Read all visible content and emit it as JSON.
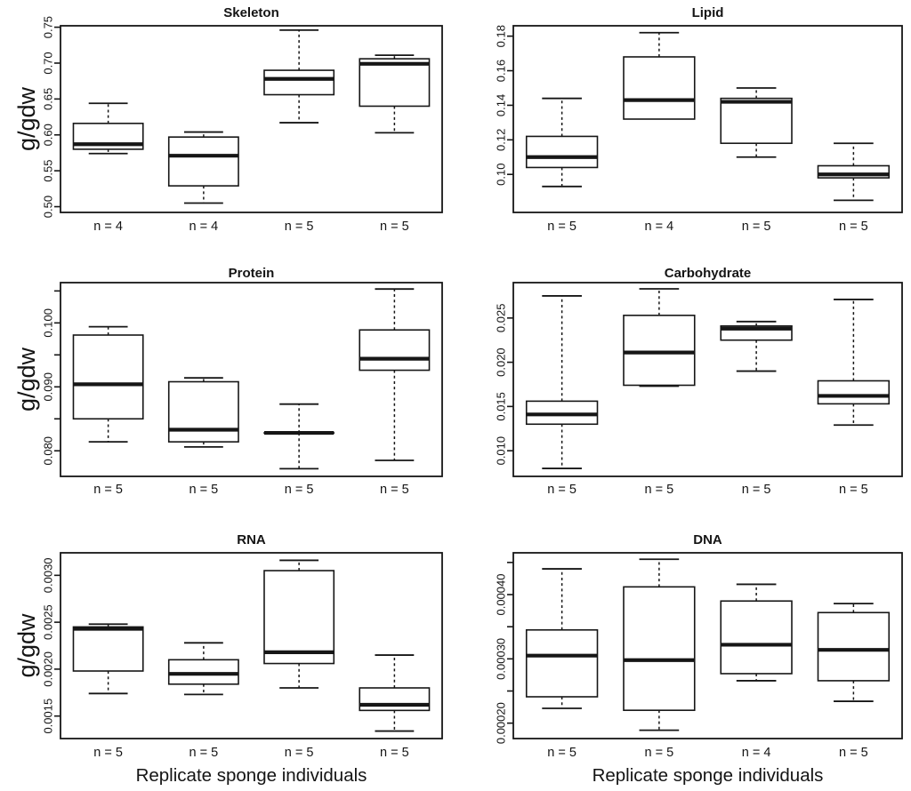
{
  "figure": {
    "y_axis_label": "g/gdw",
    "x_axis_label": "Replicate sponge individuals"
  },
  "chart_data": [
    {
      "type": "boxplot",
      "title": "Skeleton",
      "ylabel": "g/gdw",
      "categories": [
        "n = 4",
        "n = 4",
        "n = 5",
        "n = 5"
      ],
      "ylim": [
        0.492,
        0.752
      ],
      "ytick_values": [
        0.5,
        0.55,
        0.6,
        0.65,
        0.7,
        0.75
      ],
      "ytick_labels": [
        "0.50",
        "0.55",
        "0.60",
        "0.65",
        "0.70",
        "0.75"
      ],
      "yticks_minor": [],
      "boxes": [
        {
          "whisker_low": 0.574,
          "q1": 0.58,
          "median": 0.587,
          "q3": 0.616,
          "whisker_high": 0.644
        },
        {
          "whisker_low": 0.505,
          "q1": 0.529,
          "median": 0.571,
          "q3": 0.597,
          "whisker_high": 0.604
        },
        {
          "whisker_low": 0.617,
          "q1": 0.656,
          "median": 0.678,
          "q3": 0.69,
          "whisker_high": 0.746
        },
        {
          "whisker_low": 0.603,
          "q1": 0.64,
          "median": 0.699,
          "q3": 0.706,
          "whisker_high": 0.711
        }
      ]
    },
    {
      "type": "boxplot",
      "title": "Lipid",
      "categories": [
        "n = 5",
        "n = 4",
        "n = 5",
        "n = 5"
      ],
      "ylim": [
        0.078,
        0.186
      ],
      "ytick_values": [
        0.1,
        0.12,
        0.14,
        0.16,
        0.18
      ],
      "ytick_labels": [
        "0.10",
        "0.12",
        "0.14",
        "0.16",
        "0.18"
      ],
      "yticks_minor": [],
      "boxes": [
        {
          "whisker_low": 0.093,
          "q1": 0.104,
          "median": 0.11,
          "q3": 0.122,
          "whisker_high": 0.144
        },
        {
          "whisker_low": 0.132,
          "q1": 0.132,
          "median": 0.143,
          "q3": 0.168,
          "whisker_high": 0.182
        },
        {
          "whisker_low": 0.11,
          "q1": 0.118,
          "median": 0.142,
          "q3": 0.144,
          "whisker_high": 0.15
        },
        {
          "whisker_low": 0.085,
          "q1": 0.098,
          "median": 0.1,
          "q3": 0.105,
          "whisker_high": 0.118
        }
      ]
    },
    {
      "type": "boxplot",
      "title": "Protein",
      "ylabel": "g/gdw",
      "categories": [
        "n = 5",
        "n = 5",
        "n = 5",
        "n = 5"
      ],
      "ylim": [
        0.076,
        0.1063
      ],
      "ytick_values": [
        0.08,
        0.09,
        0.1
      ],
      "ytick_labels": [
        "0.080",
        "0.090",
        "0.100"
      ],
      "yticks_minor": [
        0.085,
        0.095,
        0.105
      ],
      "boxes": [
        {
          "whisker_low": 0.0814,
          "q1": 0.085,
          "median": 0.0904,
          "q3": 0.0981,
          "whisker_high": 0.0994
        },
        {
          "whisker_low": 0.0806,
          "q1": 0.0814,
          "median": 0.0833,
          "q3": 0.0908,
          "whisker_high": 0.0914
        },
        {
          "whisker_low": 0.0772,
          "q1": 0.0828,
          "median": 0.0828,
          "q3": 0.0828,
          "whisker_high": 0.0873
        },
        {
          "whisker_low": 0.0785,
          "q1": 0.0926,
          "median": 0.0944,
          "q3": 0.0989,
          "whisker_high": 0.1053
        }
      ]
    },
    {
      "type": "boxplot",
      "title": "Carbohydrate",
      "categories": [
        "n = 5",
        "n = 5",
        "n = 5",
        "n = 5"
      ],
      "ylim": [
        0.0071,
        0.029
      ],
      "ytick_values": [
        0.01,
        0.015,
        0.02,
        0.025
      ],
      "ytick_labels": [
        "0.010",
        "0.015",
        "0.020",
        "0.025"
      ],
      "yticks_minor": [],
      "boxes": [
        {
          "whisker_low": 0.008,
          "q1": 0.013,
          "median": 0.0141,
          "q3": 0.0156,
          "whisker_high": 0.0275
        },
        {
          "whisker_low": 0.0173,
          "q1": 0.0174,
          "median": 0.0211,
          "q3": 0.0253,
          "whisker_high": 0.0283
        },
        {
          "whisker_low": 0.019,
          "q1": 0.0225,
          "median": 0.0238,
          "q3": 0.0241,
          "whisker_high": 0.0246
        },
        {
          "whisker_low": 0.0129,
          "q1": 0.0153,
          "median": 0.0162,
          "q3": 0.0179,
          "whisker_high": 0.0271
        }
      ]
    },
    {
      "type": "boxplot",
      "title": "RNA",
      "ylabel": "g/gdw",
      "xlabel": "Replicate sponge individuals",
      "categories": [
        "n = 5",
        "n = 5",
        "n = 5",
        "n = 5"
      ],
      "ylim": [
        0.00126,
        0.00324
      ],
      "ytick_values": [
        0.0015,
        0.002,
        0.0025,
        0.003
      ],
      "ytick_labels": [
        "0.0015",
        "0.0020",
        "0.0025",
        "0.0030"
      ],
      "yticks_minor": [],
      "boxes": [
        {
          "whisker_low": 0.00174,
          "q1": 0.00198,
          "median": 0.00243,
          "q3": 0.00245,
          "whisker_high": 0.00248
        },
        {
          "whisker_low": 0.00173,
          "q1": 0.00184,
          "median": 0.00195,
          "q3": 0.0021,
          "whisker_high": 0.00228
        },
        {
          "whisker_low": 0.0018,
          "q1": 0.00206,
          "median": 0.00218,
          "q3": 0.00305,
          "whisker_high": 0.00316
        },
        {
          "whisker_low": 0.00134,
          "q1": 0.00156,
          "median": 0.00162,
          "q3": 0.0018,
          "whisker_high": 0.00215
        }
      ]
    },
    {
      "type": "boxplot",
      "title": "DNA",
      "xlabel": "Replicate sponge individuals",
      "categories": [
        "n = 5",
        "n = 5",
        "n = 4",
        "n = 5"
      ],
      "ylim": [
        0.000176,
        0.000465
      ],
      "ytick_values": [
        0.0002,
        0.0003,
        0.0004
      ],
      "ytick_labels": [
        "0.00020",
        "0.00030",
        "0.00040"
      ],
      "yticks_minor": [
        0.00025,
        0.00035,
        0.00045
      ],
      "boxes": [
        {
          "whisker_low": 0.000223,
          "q1": 0.000241,
          "median": 0.000305,
          "q3": 0.000345,
          "whisker_high": 0.00044
        },
        {
          "whisker_low": 0.000189,
          "q1": 0.00022,
          "median": 0.000298,
          "q3": 0.000412,
          "whisker_high": 0.000455
        },
        {
          "whisker_low": 0.000266,
          "q1": 0.000277,
          "median": 0.000322,
          "q3": 0.00039,
          "whisker_high": 0.000416
        },
        {
          "whisker_low": 0.000234,
          "q1": 0.000266,
          "median": 0.000314,
          "q3": 0.000372,
          "whisker_high": 0.000386
        }
      ]
    }
  ]
}
